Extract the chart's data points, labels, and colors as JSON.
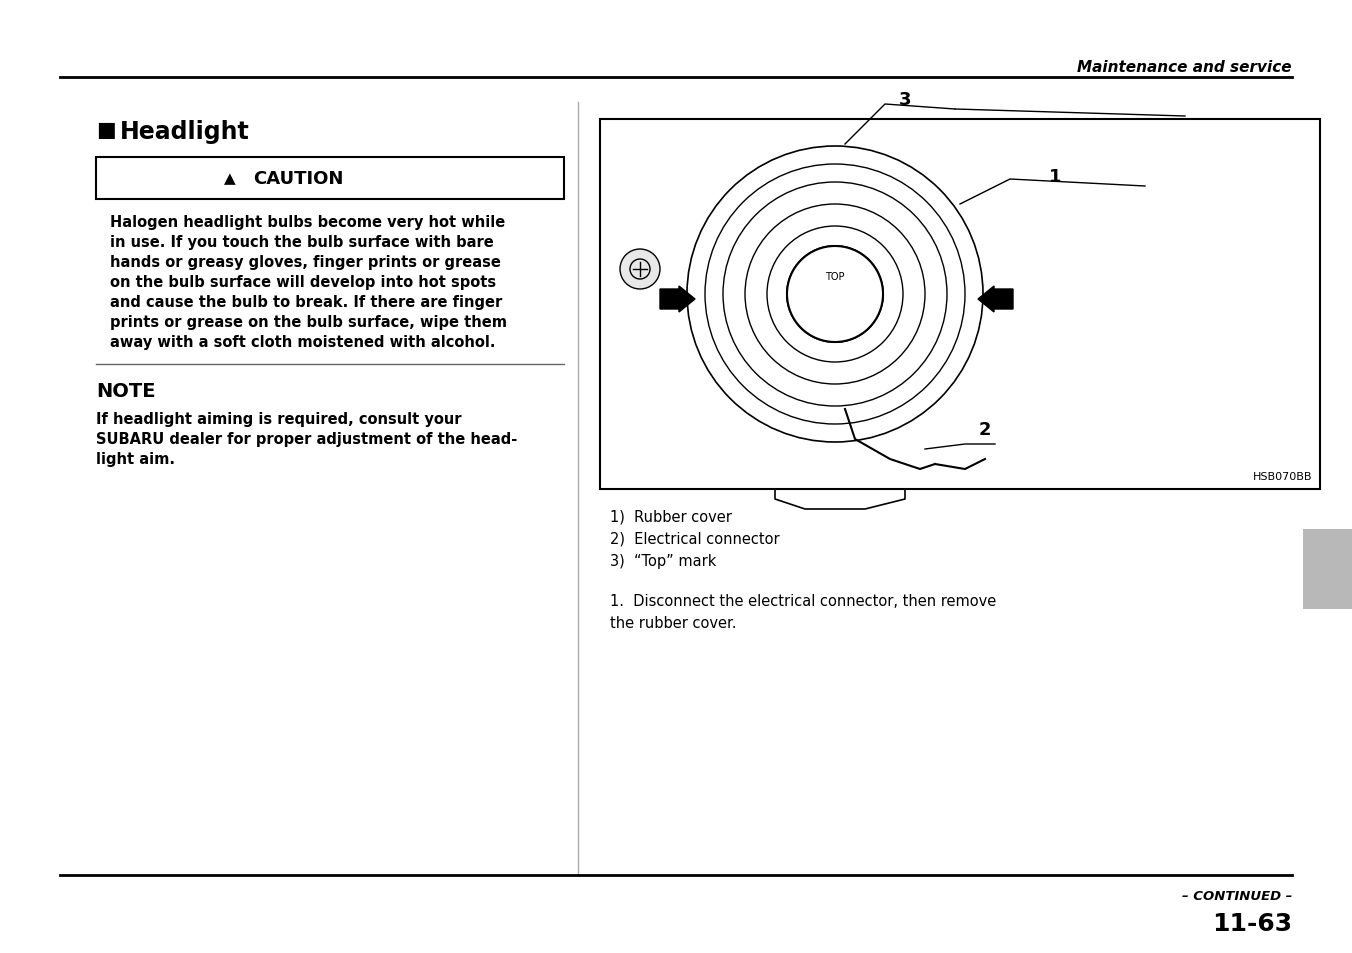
{
  "page_title": "Maintenance and service",
  "section_title": "Headlight",
  "caution_header": "CAUTION",
  "caution_text_lines": [
    "Halogen headlight bulbs become very hot while",
    "in use. If you touch the bulb surface with bare",
    "hands or greasy gloves, finger prints or grease",
    "on the bulb surface will develop into hot spots",
    "and cause the bulb to break. If there are finger",
    "prints or grease on the bulb surface, wipe them",
    "away with a soft cloth moistened with alcohol."
  ],
  "note_header": "NOTE",
  "note_text_lines": [
    "If headlight aiming is required, consult your",
    "SUBARU dealer for proper adjustment of the head-",
    "light aim."
  ],
  "legend_lines": [
    "1)  Rubber cover",
    "2)  Electrical connector",
    "3)  “Top” mark"
  ],
  "step_text_lines": [
    "1.  Disconnect the electrical connector, then remove",
    "the rubber cover."
  ],
  "continued": "– CONTINUED –",
  "page_number": "11-63",
  "diagram_code": "HSB070BB",
  "bg_color": "#ffffff",
  "line_color": "#000000"
}
